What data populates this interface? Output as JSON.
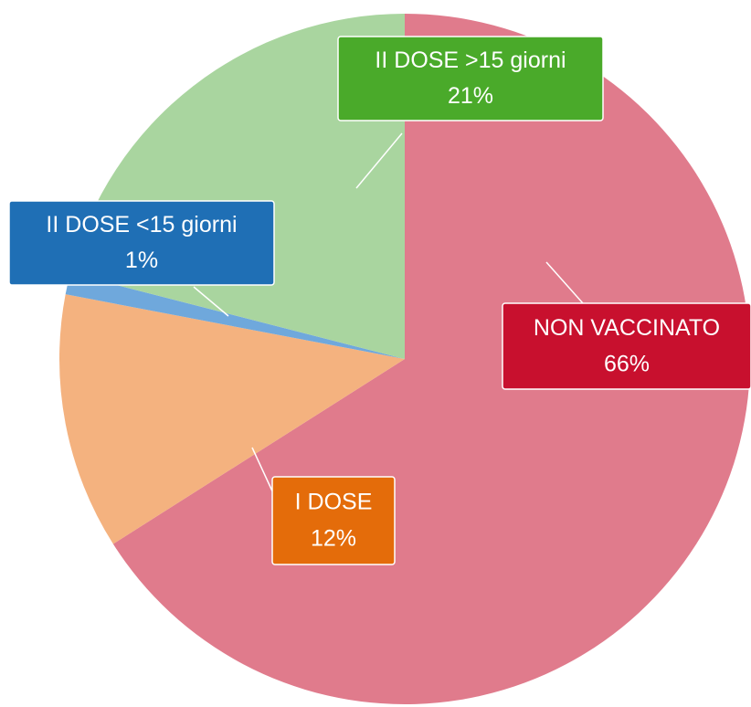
{
  "chart_data": {
    "type": "pie",
    "categories": [
      "NON VACCINATO",
      "I DOSE",
      "II DOSE <15 giorni",
      "II DOSE >15 giorni"
    ],
    "values": [
      66,
      12,
      1,
      21
    ],
    "value_labels": [
      "66%",
      "12%",
      "1%",
      "21%"
    ],
    "colors": [
      "#e07b8c",
      "#f4b27f",
      "#6fa8dc",
      "#a9d59f"
    ],
    "label_colors": [
      "#c8102e",
      "#e46c0a",
      "#1f6fb5",
      "#4aaa2a"
    ]
  }
}
